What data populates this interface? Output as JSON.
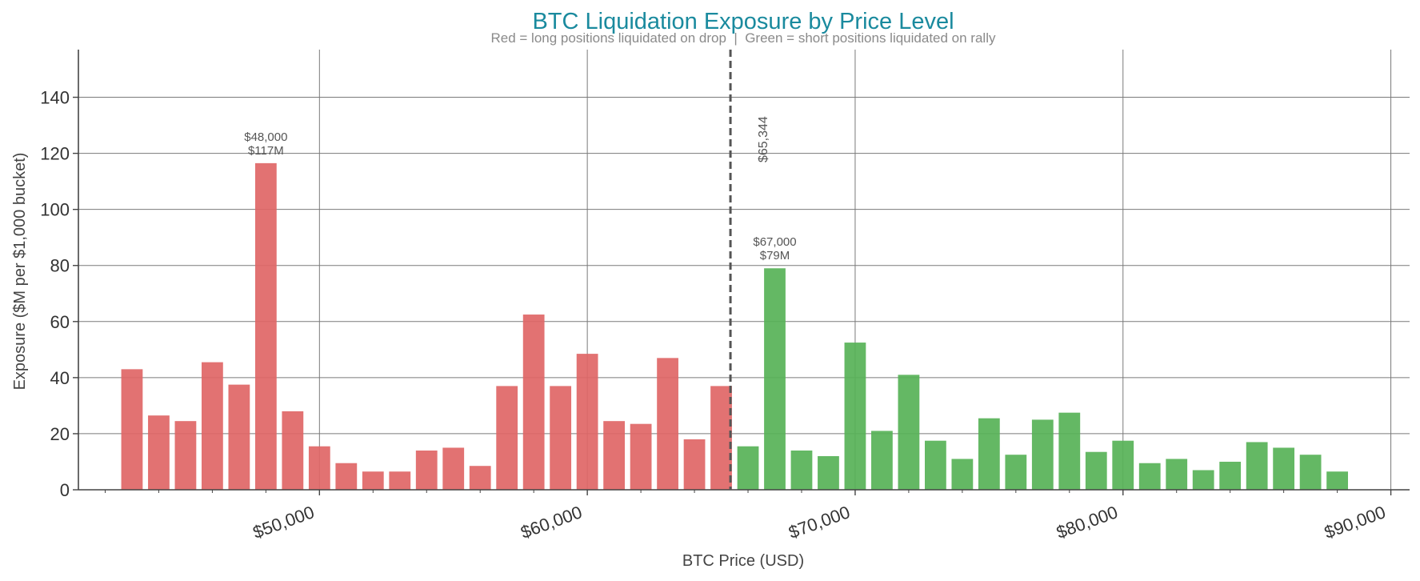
{
  "colors": {
    "long": "#e06666",
    "short": "#57b257",
    "title": "#1a8a9e",
    "subtitle": "#8a8a8a",
    "axis": "#444444",
    "grid": "#7a7a7a",
    "marker": "#555555",
    "annotation": "#555555"
  },
  "chart_data": {
    "type": "bar",
    "title": "BTC Liquidation Exposure by Price Level",
    "subtitle": "Red = long positions liquidated on drop  |  Green = short positions liquidated on rally",
    "xlabel": "BTC Price (USD)",
    "ylabel": "Exposure ($M per $1,000 bucket)",
    "xlim": [
      41000,
      90700
    ],
    "ylim": [
      0,
      157
    ],
    "yticks": [
      0,
      20,
      40,
      60,
      80,
      100,
      120,
      140
    ],
    "yticklabels": [
      "0",
      "20",
      "40",
      "60",
      "80",
      "100",
      "120",
      "140"
    ],
    "xticks": [
      50000,
      60000,
      70000,
      80000,
      90000
    ],
    "xticklabels": [
      "$50,000",
      "$60,000",
      "$70,000",
      "$80,000",
      "$90,000"
    ],
    "grid": true,
    "bucket_width": 1000,
    "current_price": 65344,
    "current_price_label": "$65,344",
    "series": [
      {
        "side": "long",
        "x": [
          43000,
          44000,
          45000,
          46000,
          47000,
          48000,
          49000,
          50000,
          51000,
          52000,
          53000,
          54000,
          55000,
          56000,
          57000,
          58000,
          59000,
          60000,
          61000,
          62000,
          63000,
          64000,
          65000
        ],
        "values": [
          43,
          26.5,
          24.5,
          45.5,
          37.5,
          116.5,
          28,
          15.5,
          9.5,
          6.5,
          6.5,
          14,
          15,
          8.5,
          37,
          62.5,
          37,
          48.5,
          24.5,
          23.5,
          47,
          18,
          37
        ]
      },
      {
        "side": "short",
        "x": [
          66000,
          67000,
          68000,
          69000,
          70000,
          71000,
          72000,
          73000,
          74000,
          75000,
          76000,
          77000,
          78000,
          79000,
          80000,
          81000,
          82000,
          83000,
          84000,
          85000,
          86000,
          87000,
          88000
        ],
        "values": [
          15.5,
          79,
          14,
          12,
          52.5,
          21,
          41,
          17.5,
          11,
          25.5,
          12.5,
          25,
          27.5,
          13.5,
          17.5,
          9.5,
          11,
          7,
          10,
          17,
          15,
          12.5,
          6.5
        ]
      }
    ],
    "annotations": [
      {
        "x": 48000,
        "y": 116.5,
        "line1": "$48,000",
        "line2": "$117M"
      },
      {
        "x": 67000,
        "y": 79,
        "line1": "$67,000",
        "line2": "$79M"
      }
    ]
  }
}
